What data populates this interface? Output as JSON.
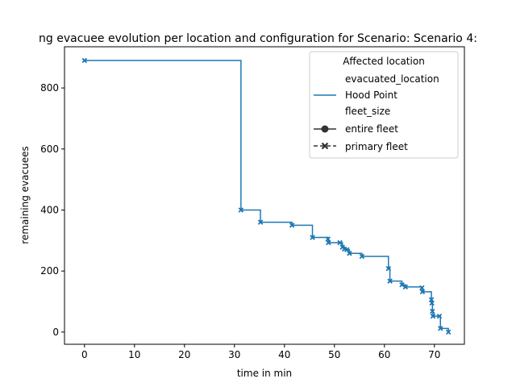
{
  "chart_data": {
    "type": "line",
    "title": "ng evacuee evolution per location and configuration for Scenario: Scenario 4:",
    "xlabel": "time in min",
    "ylabel": "remaining evacuees",
    "xlim": [
      -4,
      76
    ],
    "ylim": [
      -40,
      935
    ],
    "xticks": [
      0,
      10,
      20,
      30,
      40,
      50,
      60,
      70
    ],
    "yticks": [
      0,
      200,
      400,
      600,
      800
    ],
    "grid": false,
    "line_color": "#1f77b4",
    "legend": {
      "placement": "top-right",
      "title": "Affected location",
      "entries": [
        {
          "label": "evacuated_location",
          "kind": "header"
        },
        {
          "label": "Hood Point",
          "kind": "line"
        },
        {
          "label": "fleet_size",
          "kind": "header"
        },
        {
          "label": "entire fleet",
          "kind": "marker-circle"
        },
        {
          "label": "primary fleet",
          "kind": "marker-x-dashed"
        }
      ]
    },
    "series": [
      {
        "name": "Hood Point",
        "style": "primary fleet",
        "drawstyle": "steps-post",
        "x": [
          0,
          31.3,
          35.2,
          41.5,
          45.6,
          48.7,
          48.8,
          51.1,
          51.6,
          52.0,
          52.5,
          53.0,
          55.5,
          60.8,
          61.1,
          63.5,
          64.2,
          67.5,
          67.6,
          69.4,
          69.5,
          69.6,
          69.7,
          71.0,
          71.2,
          72.8
        ],
        "y": [
          890,
          400,
          360,
          350,
          310,
          305,
          293,
          293,
          278,
          272,
          270,
          258,
          248,
          208,
          167,
          155,
          148,
          145,
          132,
          106,
          95,
          68,
          52,
          52,
          12,
          0
        ],
        "marker_y": [
          890,
          400,
          360,
          350,
          310,
          305,
          293,
          293,
          278,
          272,
          270,
          258,
          248,
          208,
          167,
          155,
          148,
          145,
          132,
          106,
          95,
          68,
          52,
          52,
          12,
          0
        ]
      }
    ]
  }
}
